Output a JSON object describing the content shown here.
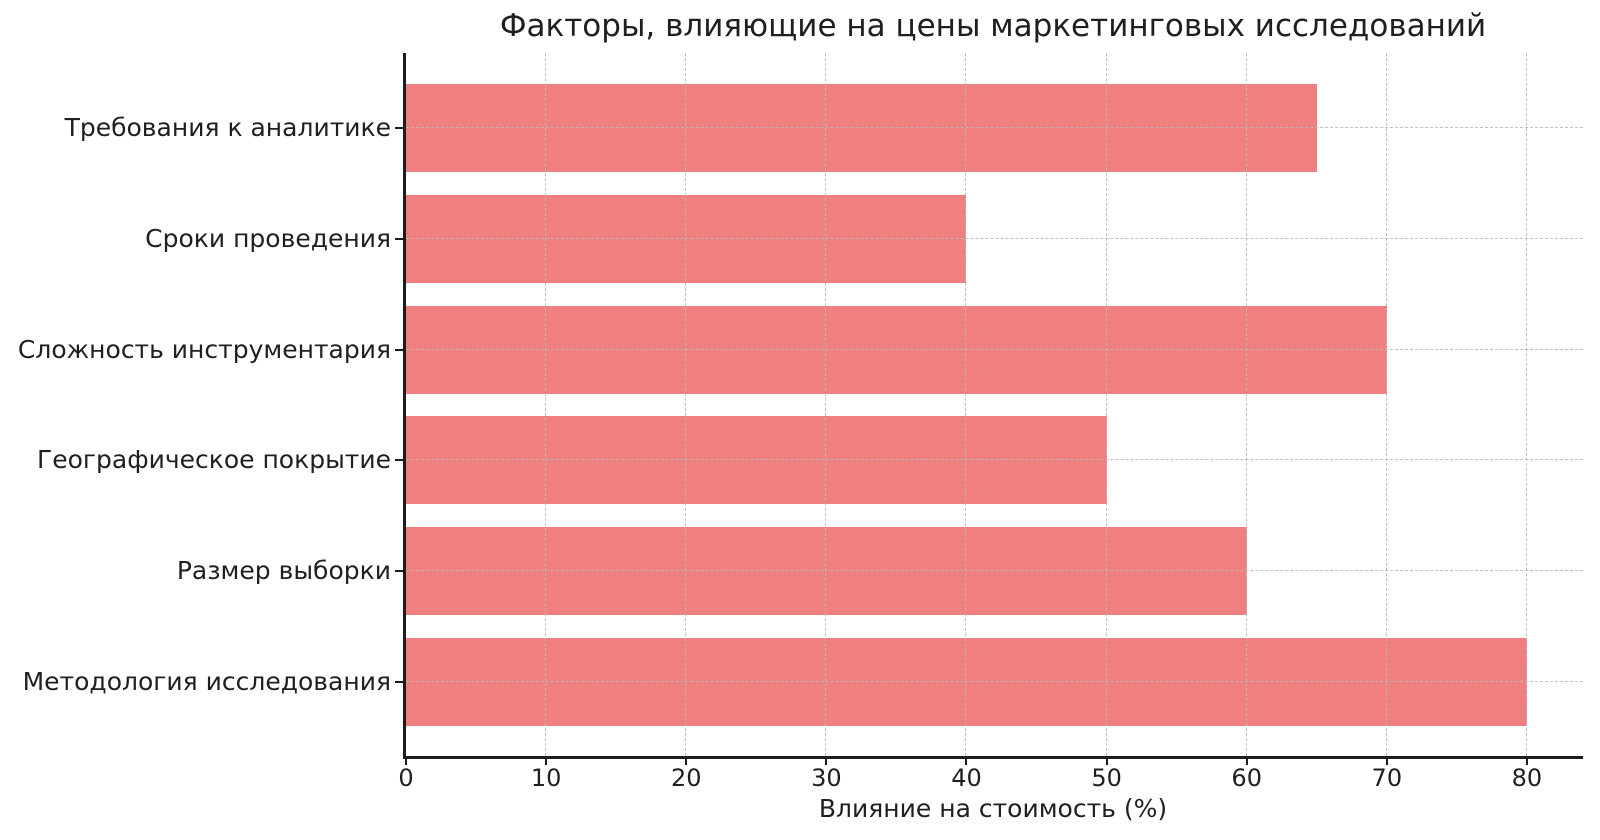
{
  "chart_data": {
    "type": "bar",
    "orientation": "horizontal",
    "title": "Факторы, влияющие на цены маркетинговых исследований",
    "xlabel": "Влияние на стоимость (%)",
    "ylabel": "",
    "categories": [
      "Требования к аналитике",
      "Сроки проведения",
      "Сложность инструментария",
      "Географическое покрытие",
      "Размер выборки",
      "Методология исследования"
    ],
    "values": [
      65,
      40,
      70,
      50,
      60,
      80
    ],
    "xticks": [
      0,
      10,
      20,
      30,
      40,
      50,
      60,
      70,
      80
    ],
    "xlim": [
      0,
      84
    ],
    "bar_color": "#f08080",
    "grid": {
      "on": true,
      "style": "dashed",
      "color": "#bbbbbb",
      "axisbelow": false
    },
    "legend": null,
    "spines": {
      "left": true,
      "bottom": true,
      "top": false,
      "right": false
    }
  }
}
